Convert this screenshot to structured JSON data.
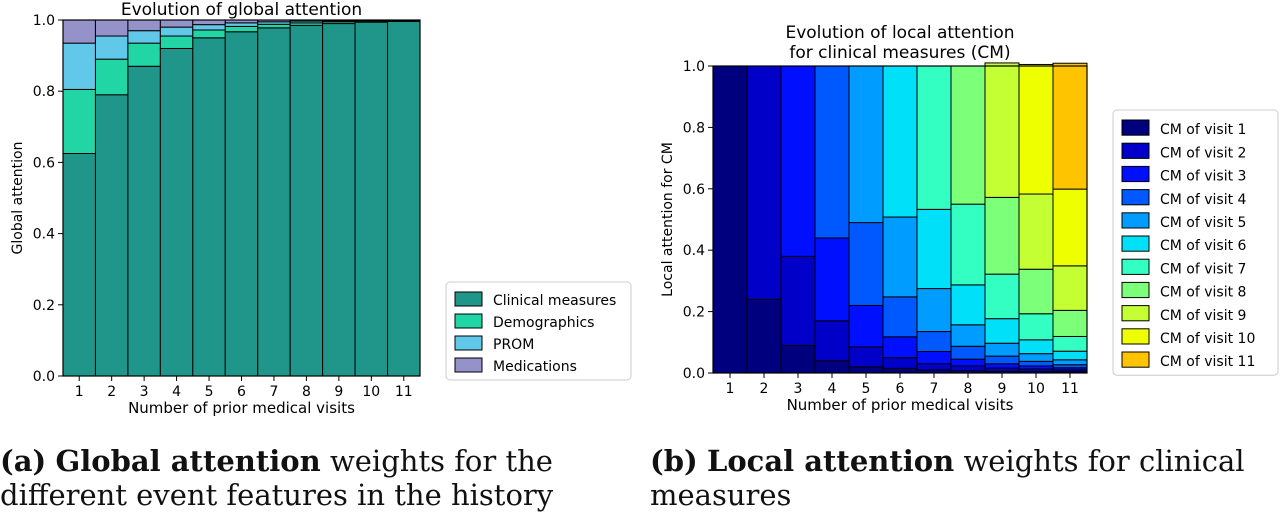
{
  "chart_data": [
    {
      "type": "bar",
      "stacked": true,
      "title": "Evolution of global attention",
      "xlabel": "Number of prior medical visits",
      "ylabel": "Global attention",
      "categories": [
        "1",
        "2",
        "3",
        "4",
        "5",
        "6",
        "7",
        "8",
        "9",
        "10",
        "11"
      ],
      "ylim": [
        0,
        1
      ],
      "yticks": [
        "0.0",
        "0.2",
        "0.4",
        "0.6",
        "0.8",
        "1.0"
      ],
      "legend_position": "lower-right-outside",
      "series": [
        {
          "name": "Clinical measures",
          "color": "#20968a",
          "values": [
            0.625,
            0.79,
            0.87,
            0.92,
            0.95,
            0.967,
            0.978,
            0.985,
            0.99,
            0.994,
            0.996
          ]
        },
        {
          "name": "Demographics",
          "color": "#21d6a4",
          "values": [
            0.18,
            0.1,
            0.065,
            0.035,
            0.022,
            0.015,
            0.01,
            0.007,
            0.005,
            0.003,
            0.002
          ]
        },
        {
          "name": "PROM",
          "color": "#62c8ea",
          "values": [
            0.13,
            0.065,
            0.035,
            0.025,
            0.015,
            0.01,
            0.007,
            0.005,
            0.003,
            0.002,
            0.001
          ]
        },
        {
          "name": "Medications",
          "color": "#9492c8",
          "values": [
            0.065,
            0.045,
            0.03,
            0.02,
            0.013,
            0.008,
            0.005,
            0.003,
            0.002,
            0.001,
            0.001
          ]
        }
      ]
    },
    {
      "type": "bar",
      "stacked": true,
      "title": "Evolution of local attention\nfor clinical measures (CM)",
      "xlabel": "Number of prior medical visits",
      "ylabel": "Local attention for CM",
      "categories": [
        "1",
        "2",
        "3",
        "4",
        "5",
        "6",
        "7",
        "8",
        "9",
        "10",
        "11"
      ],
      "ylim": [
        0,
        1
      ],
      "yticks": [
        "0.0",
        "0.2",
        "0.4",
        "0.6",
        "0.8",
        "1.0"
      ],
      "legend_position": "right-outside",
      "series": [
        {
          "name": "CM of visit 1",
          "color": "#00007f",
          "values": [
            1.0,
            0.24,
            0.09,
            0.04,
            0.02,
            0.015,
            0.01,
            0.008,
            0.006,
            0.005,
            0.004
          ]
        },
        {
          "name": "CM of visit 2",
          "color": "#0000c8",
          "values": [
            0,
            0.76,
            0.29,
            0.13,
            0.065,
            0.035,
            0.02,
            0.015,
            0.01,
            0.008,
            0.006
          ]
        },
        {
          "name": "CM of visit 3",
          "color": "#0010ff",
          "values": [
            0,
            0,
            0.62,
            0.27,
            0.135,
            0.068,
            0.04,
            0.022,
            0.014,
            0.01,
            0.007
          ]
        },
        {
          "name": "CM of visit 4",
          "color": "#0058ff",
          "values": [
            0,
            0,
            0,
            0.56,
            0.27,
            0.13,
            0.065,
            0.042,
            0.025,
            0.015,
            0.01
          ]
        },
        {
          "name": "CM of visit 5",
          "color": "#009cff",
          "values": [
            0,
            0,
            0,
            0,
            0.51,
            0.26,
            0.14,
            0.07,
            0.042,
            0.025,
            0.016
          ]
        },
        {
          "name": "CM of visit 6",
          "color": "#00e0f8",
          "values": [
            0,
            0,
            0,
            0,
            0,
            0.492,
            0.258,
            0.13,
            0.08,
            0.045,
            0.028
          ]
        },
        {
          "name": "CM of visit 7",
          "color": "#33ffc3",
          "values": [
            0,
            0,
            0,
            0,
            0,
            0,
            0.467,
            0.263,
            0.145,
            0.085,
            0.048
          ]
        },
        {
          "name": "CM of visit 8",
          "color": "#7cff79",
          "values": [
            0,
            0,
            0,
            0,
            0,
            0,
            0,
            0.45,
            0.25,
            0.145,
            0.085
          ]
        },
        {
          "name": "CM of visit 9",
          "color": "#c4ff33",
          "values": [
            0,
            0,
            0,
            0,
            0,
            0,
            0,
            0,
            0.438,
            0.245,
            0.145
          ]
        },
        {
          "name": "CM of visit 10",
          "color": "#eeff00",
          "values": [
            0,
            0,
            0,
            0,
            0,
            0,
            0,
            0,
            0,
            0.422,
            0.25
          ]
        },
        {
          "name": "CM of visit 11",
          "color": "#ffc400",
          "values": [
            0,
            0,
            0,
            0,
            0,
            0,
            0,
            0,
            0,
            0,
            0.41
          ]
        }
      ]
    }
  ],
  "captions": [
    {
      "label": "(a)",
      "bold": "Global attention",
      "rest": "weights for the different event features in the history"
    },
    {
      "label": "(b)",
      "bold": "Local attention",
      "rest": "weights for clinical measures"
    }
  ]
}
